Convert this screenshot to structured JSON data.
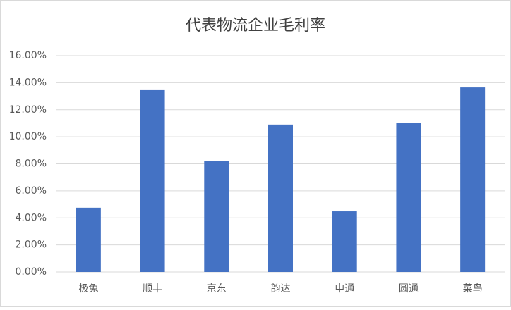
{
  "chart_data": {
    "type": "bar",
    "title": "代表物流企业毛利率",
    "categories": [
      "极兔",
      "顺丰",
      "京东",
      "韵达",
      "申通",
      "圆通",
      "菜鸟"
    ],
    "values": [
      4.75,
      13.45,
      8.23,
      10.9,
      4.48,
      11.0,
      13.65
    ],
    "color": "#4472c4",
    "ylim": [
      0,
      16
    ],
    "yticks": [
      {
        "value": 0,
        "label": "0.00%"
      },
      {
        "value": 2,
        "label": "2.00%"
      },
      {
        "value": 4,
        "label": "4.00%"
      },
      {
        "value": 6,
        "label": "6.00%"
      },
      {
        "value": 8,
        "label": "8.00%"
      },
      {
        "value": 10,
        "label": "10.00%"
      },
      {
        "value": 12,
        "label": "12.00%"
      },
      {
        "value": 14,
        "label": "14.00%"
      },
      {
        "value": 16,
        "label": "16.00%"
      }
    ],
    "grid": true
  }
}
